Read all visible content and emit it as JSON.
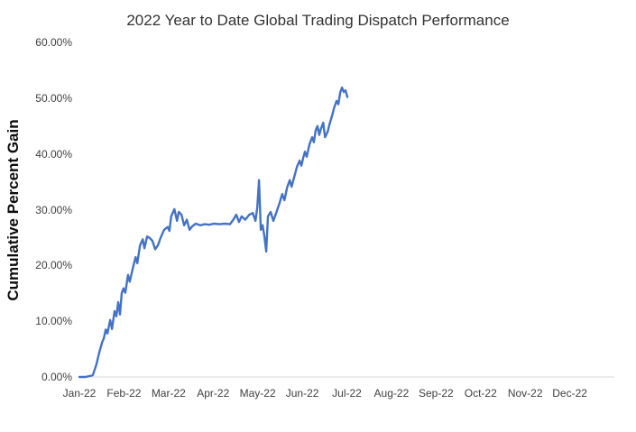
{
  "chart_data": {
    "type": "line",
    "title": "2022 Year to Date Global Trading Dispatch Performance",
    "ylabel": "Cumulative Percent Gain",
    "xlabel": "",
    "x_ticks": [
      "Jan-22",
      "Feb-22",
      "Mar-22",
      "Apr-22",
      "May-22",
      "Jun-22",
      "Jul-22",
      "Aug-22",
      "Sep-22",
      "Oct-22",
      "Nov-22",
      "Dec-22"
    ],
    "y_ticks": [
      "0.00%",
      "10.00%",
      "20.00%",
      "30.00%",
      "40.00%",
      "50.00%",
      "60.00%"
    ],
    "y_tick_values": [
      0,
      10,
      20,
      30,
      40,
      50,
      60
    ],
    "xlim": [
      0,
      12
    ],
    "ylim": [
      0,
      60
    ],
    "grid": false,
    "legend": "none",
    "line_color": "#4472C4",
    "axis_line_color": "#d9d9d9",
    "series": [
      {
        "name": "Cumulative Percent Gain",
        "points": [
          [
            0.0,
            0.0
          ],
          [
            0.14,
            0.0
          ],
          [
            0.3,
            0.3
          ],
          [
            0.38,
            2.2
          ],
          [
            0.45,
            4.5
          ],
          [
            0.51,
            6.2
          ],
          [
            0.55,
            7.0
          ],
          [
            0.59,
            8.5
          ],
          [
            0.63,
            7.8
          ],
          [
            0.69,
            10.2
          ],
          [
            0.73,
            8.6
          ],
          [
            0.79,
            11.8
          ],
          [
            0.83,
            10.9
          ],
          [
            0.87,
            13.4
          ],
          [
            0.91,
            11.2
          ],
          [
            0.95,
            15.0
          ],
          [
            0.99,
            15.9
          ],
          [
            1.03,
            15.1
          ],
          [
            1.09,
            18.3
          ],
          [
            1.13,
            17.1
          ],
          [
            1.21,
            19.9
          ],
          [
            1.26,
            21.5
          ],
          [
            1.3,
            20.4
          ],
          [
            1.36,
            23.6
          ],
          [
            1.42,
            24.7
          ],
          [
            1.46,
            23.1
          ],
          [
            1.52,
            25.2
          ],
          [
            1.58,
            24.9
          ],
          [
            1.64,
            24.4
          ],
          [
            1.7,
            22.9
          ],
          [
            1.76,
            23.6
          ],
          [
            1.82,
            24.9
          ],
          [
            1.9,
            26.4
          ],
          [
            1.98,
            26.9
          ],
          [
            2.02,
            26.2
          ],
          [
            2.06,
            28.8
          ],
          [
            2.13,
            30.1
          ],
          [
            2.19,
            28.0
          ],
          [
            2.23,
            29.6
          ],
          [
            2.29,
            29.1
          ],
          [
            2.35,
            27.2
          ],
          [
            2.41,
            28.2
          ],
          [
            2.47,
            26.4
          ],
          [
            2.53,
            27.0
          ],
          [
            2.61,
            27.5
          ],
          [
            2.71,
            27.2
          ],
          [
            2.81,
            27.4
          ],
          [
            2.91,
            27.3
          ],
          [
            3.02,
            27.5
          ],
          [
            3.14,
            27.4
          ],
          [
            3.26,
            27.5
          ],
          [
            3.38,
            27.4
          ],
          [
            3.46,
            28.3
          ],
          [
            3.52,
            29.1
          ],
          [
            3.58,
            27.8
          ],
          [
            3.64,
            28.8
          ],
          [
            3.72,
            28.2
          ],
          [
            3.81,
            29.1
          ],
          [
            3.89,
            29.4
          ],
          [
            3.95,
            28.0
          ],
          [
            3.99,
            30.4
          ],
          [
            4.03,
            35.3
          ],
          [
            4.07,
            26.4
          ],
          [
            4.11,
            27.2
          ],
          [
            4.15,
            25.2
          ],
          [
            4.19,
            22.5
          ],
          [
            4.23,
            28.8
          ],
          [
            4.29,
            29.6
          ],
          [
            4.35,
            28.0
          ],
          [
            4.41,
            29.3
          ],
          [
            4.49,
            31.2
          ],
          [
            4.55,
            32.8
          ],
          [
            4.6,
            31.7
          ],
          [
            4.66,
            34.0
          ],
          [
            4.72,
            35.3
          ],
          [
            4.76,
            34.1
          ],
          [
            4.82,
            35.9
          ],
          [
            4.88,
            37.7
          ],
          [
            4.94,
            38.8
          ],
          [
            4.98,
            37.9
          ],
          [
            5.02,
            39.3
          ],
          [
            5.06,
            40.4
          ],
          [
            5.1,
            39.5
          ],
          [
            5.16,
            41.7
          ],
          [
            5.22,
            43.0
          ],
          [
            5.26,
            42.1
          ],
          [
            5.3,
            44.2
          ],
          [
            5.34,
            45.0
          ],
          [
            5.38,
            43.4
          ],
          [
            5.42,
            44.5
          ],
          [
            5.47,
            45.6
          ],
          [
            5.51,
            43.0
          ],
          [
            5.57,
            44.0
          ],
          [
            5.61,
            45.3
          ],
          [
            5.67,
            46.9
          ],
          [
            5.71,
            48.2
          ],
          [
            5.77,
            49.5
          ],
          [
            5.81,
            48.9
          ],
          [
            5.85,
            51.0
          ],
          [
            5.89,
            51.9
          ],
          [
            5.93,
            51.1
          ],
          [
            5.97,
            51.4
          ],
          [
            6.01,
            50.2
          ]
        ]
      }
    ]
  }
}
